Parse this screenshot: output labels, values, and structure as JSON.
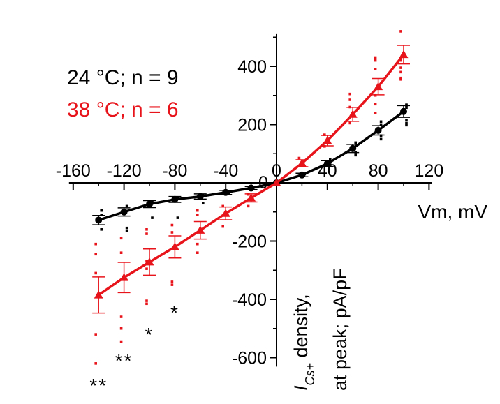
{
  "chart_data": {
    "type": "line",
    "title": "",
    "xlabel": "Vm, mV",
    "ylabel": {
      "symbol": "I",
      "subscript": "Cs+",
      "line1_rest": " density,",
      "line2": "at peak; pA/pF"
    },
    "xlim": [
      -160,
      120
    ],
    "ylim": [
      -650,
      520
    ],
    "x_ticks": [
      -160,
      -120,
      -80,
      -40,
      0,
      40,
      80,
      120
    ],
    "x_tick_labels": [
      "-160",
      "-120",
      "-80",
      "-40",
      "0",
      "40",
      "80",
      "120"
    ],
    "y_ticks": [
      -600,
      -400,
      -200,
      200,
      400
    ],
    "y_tick_labels": [
      "-600",
      "-400",
      "-200",
      "200",
      "400"
    ],
    "grid": false,
    "legend_position": "top-left",
    "series": [
      {
        "name": "24 °C",
        "label": "24 °C; n = 9",
        "color": "#000000",
        "marker": "circle",
        "x": [
          -140,
          -120,
          -100,
          -80,
          -60,
          -40,
          -20,
          0,
          20,
          40,
          60,
          80,
          100
        ],
        "y": [
          -128,
          -100,
          -73,
          -57,
          -47,
          -33,
          -18,
          0,
          27,
          66,
          118,
          180,
          245
        ],
        "err": [
          16,
          14,
          12,
          10,
          9,
          7,
          5,
          0,
          6,
          10,
          14,
          16,
          20
        ],
        "scatter": [
          [
            -140,
            -95
          ],
          [
            -140,
            -110
          ],
          [
            -140,
            -160
          ],
          [
            -120,
            -80
          ],
          [
            -120,
            -155
          ],
          [
            -120,
            -165
          ],
          [
            -100,
            -65
          ],
          [
            -100,
            -120
          ],
          [
            -80,
            -50
          ],
          [
            -80,
            -120
          ],
          [
            -60,
            -42
          ],
          [
            -60,
            -70
          ],
          [
            -40,
            -35
          ],
          [
            20,
            30
          ],
          [
            40,
            62
          ],
          [
            40,
            80
          ],
          [
            60,
            95
          ],
          [
            60,
            105
          ],
          [
            60,
            138
          ],
          [
            80,
            150
          ],
          [
            80,
            162
          ],
          [
            80,
            200
          ],
          [
            80,
            210
          ],
          [
            100,
            198
          ],
          [
            100,
            205
          ],
          [
            100,
            215
          ],
          [
            100,
            258
          ],
          [
            100,
            265
          ],
          [
            100,
            268
          ]
        ]
      },
      {
        "name": "38 °C",
        "label": "38 °C; n = 6",
        "color": "#e8141b",
        "marker": "triangle",
        "x": [
          -140,
          -120,
          -100,
          -80,
          -60,
          -40,
          -20,
          0,
          20,
          40,
          60,
          80,
          100
        ],
        "y": [
          -385,
          -325,
          -272,
          -220,
          -163,
          -105,
          -52,
          0,
          67,
          145,
          235,
          330,
          440
        ],
        "err": [
          62,
          52,
          45,
          38,
          30,
          22,
          14,
          0,
          12,
          18,
          24,
          28,
          32
        ],
        "scatter": [
          [
            -140,
            -210
          ],
          [
            -140,
            -245
          ],
          [
            -140,
            -310
          ],
          [
            -140,
            -520
          ],
          [
            -140,
            -620
          ],
          [
            -120,
            -190
          ],
          [
            -120,
            -240
          ],
          [
            -120,
            -460
          ],
          [
            -120,
            -500
          ],
          [
            -120,
            -545
          ],
          [
            -100,
            -160
          ],
          [
            -100,
            -175
          ],
          [
            -100,
            -270
          ],
          [
            -100,
            -295
          ],
          [
            -100,
            -405
          ],
          [
            -100,
            -415
          ],
          [
            -80,
            -145
          ],
          [
            -80,
            -170
          ],
          [
            -80,
            -340
          ],
          [
            -80,
            -350
          ],
          [
            -60,
            -95
          ],
          [
            -60,
            -110
          ],
          [
            -60,
            -210
          ],
          [
            -60,
            -240
          ],
          [
            -40,
            -80
          ],
          [
            -40,
            -150
          ],
          [
            -20,
            -40
          ],
          [
            -20,
            -80
          ],
          [
            20,
            85
          ],
          [
            40,
            125
          ],
          [
            40,
            165
          ],
          [
            60,
            205
          ],
          [
            60,
            260
          ],
          [
            60,
            285
          ],
          [
            60,
            305
          ],
          [
            80,
            240
          ],
          [
            80,
            270
          ],
          [
            80,
            300
          ],
          [
            80,
            390
          ],
          [
            80,
            420
          ],
          [
            80,
            430
          ],
          [
            100,
            355
          ],
          [
            100,
            360
          ],
          [
            100,
            380
          ],
          [
            100,
            395
          ],
          [
            100,
            420
          ],
          [
            100,
            520
          ]
        ]
      }
    ],
    "annotations": [
      {
        "text": "**",
        "x": -140,
        "y": -675,
        "color": "#000000"
      },
      {
        "text": "**",
        "x": -120,
        "y": -590,
        "color": "#000000"
      },
      {
        "text": "*",
        "x": -100,
        "y": -500,
        "color": "#000000"
      },
      {
        "text": "*",
        "x": -80,
        "y": -425,
        "color": "#000000"
      }
    ]
  }
}
